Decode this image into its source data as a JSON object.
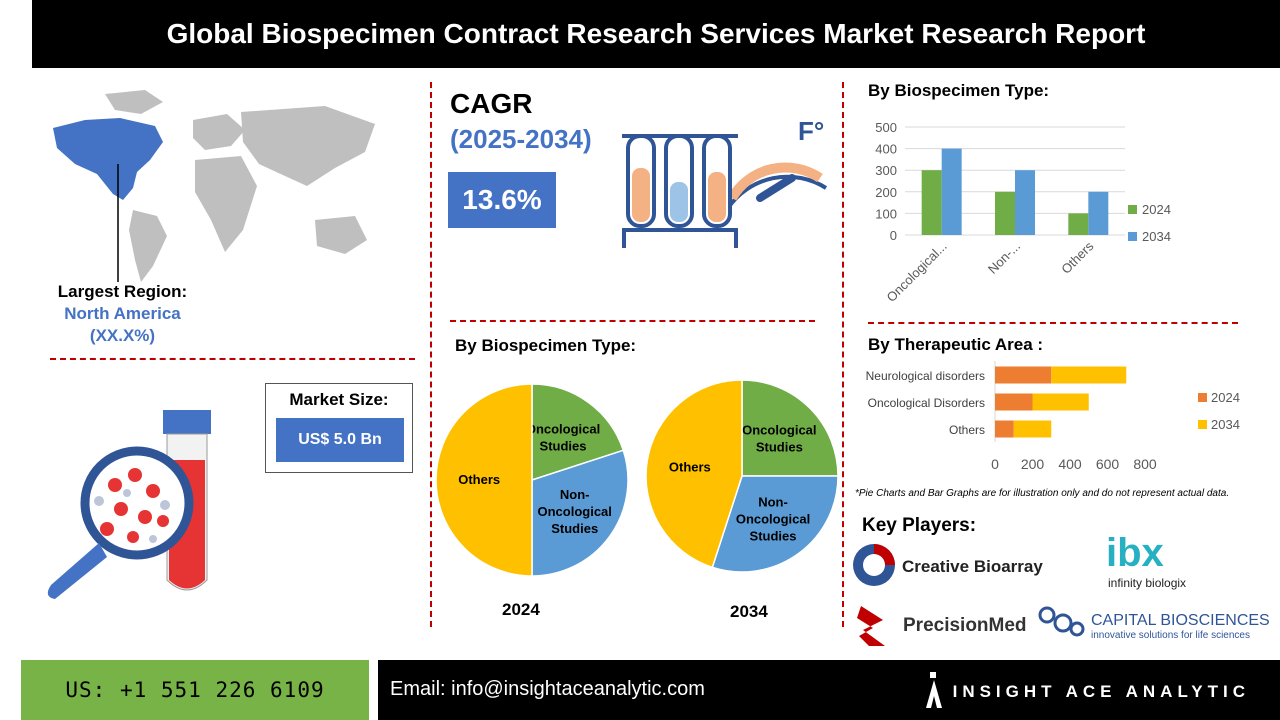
{
  "header": {
    "title": "Global Biospecimen Contract Research Services Market Research Report"
  },
  "region": {
    "label": "Largest Region:",
    "name": "North America",
    "share": "(XX.X%)"
  },
  "cagr": {
    "title": "CAGR",
    "years": "(2025-2034)",
    "value": "13.6%"
  },
  "market_size": {
    "label": "Market Size:",
    "value": "US$ 5.0 Bn"
  },
  "pies": {
    "title": "By Biospecimen Type:",
    "year_a": "2024",
    "year_b": "2034",
    "labels": {
      "oncological": "Oncological Studies",
      "non_oncological": "Non-Oncological Studies",
      "others": "Others"
    }
  },
  "bar_section": {
    "title": "By Biospecimen Type:"
  },
  "hbar_section": {
    "title": "By Therapeutic Area :"
  },
  "footnote": "*Pie Charts and Bar Graphs are for illustration only and do not represent actual data.",
  "key_players": {
    "title": "Key Players:",
    "names": [
      "Creative Bioarray",
      "infinity biologix",
      "PrecisionMed",
      "CAPITAL BIOSCIENCES"
    ],
    "ibx_mark": "ibx",
    "capital_tagline": "innovative solutions for life sciences"
  },
  "footer": {
    "phone": "US: +1 551 226 6109",
    "email": "Email: info@insightaceanalytic.com",
    "brand": "INSIGHT ACE ANALYTIC"
  },
  "colors": {
    "green": "#70ad47",
    "blue": "#5b9bd5",
    "orange": "#ed7d31",
    "gold": "#ffc000",
    "accent": "#4472c4"
  },
  "chart_data": [
    {
      "type": "bar",
      "title": "By Biospecimen Type:",
      "categories": [
        "Oncological...",
        "Non-...",
        "Others"
      ],
      "series": [
        {
          "name": "2024",
          "values": [
            300,
            200,
            100
          ]
        },
        {
          "name": "2034",
          "values": [
            400,
            300,
            200
          ]
        }
      ],
      "ylim": [
        0,
        500
      ],
      "yticks": [
        "500",
        "400",
        "300",
        "200",
        "100",
        "0"
      ],
      "grid": true,
      "legend": "right"
    },
    {
      "type": "bar",
      "orientation": "horizontal",
      "title": "By Therapeutic Area :",
      "categories": [
        "Neurological disorders",
        "Oncological Disorders",
        "Others"
      ],
      "series": [
        {
          "name": "2024",
          "values": [
            300,
            200,
            100
          ]
        },
        {
          "name": "2034",
          "values": [
            400,
            300,
            200
          ]
        }
      ],
      "stacked": true,
      "xlim": [
        0,
        800
      ],
      "xticks": [
        "0",
        "200",
        "400",
        "600",
        "800"
      ],
      "legend": "right"
    },
    {
      "type": "pie",
      "title": "2024",
      "labels": [
        "Oncological Studies",
        "Non-Oncological Studies",
        "Others"
      ],
      "values": [
        20,
        30,
        50
      ]
    },
    {
      "type": "pie",
      "title": "2034",
      "labels": [
        "Oncological Studies",
        "Non-Oncological Studies",
        "Others"
      ],
      "values": [
        25,
        30,
        45
      ]
    }
  ]
}
